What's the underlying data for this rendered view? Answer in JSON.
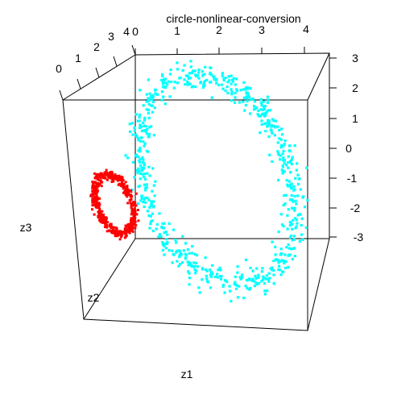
{
  "chart_data": {
    "type": "scatter",
    "title": "circle-nonlinear-conversion",
    "xlabel": "z1",
    "ylabel": "z2",
    "zlabel": "z3",
    "colors": {
      "outer": "#00FFFF",
      "inner": "#FF0000",
      "axes": "#000000",
      "background": "#FFFFFF"
    },
    "grid": false,
    "axes": {
      "z1": {
        "ticks": [
          "0",
          "1",
          "2",
          "3",
          "4"
        ]
      },
      "z2": {
        "ticks": [
          "0",
          "1",
          "2",
          "3",
          "4"
        ]
      },
      "z3": {
        "ticks": [
          "3",
          "2",
          "1",
          "0",
          "-1",
          "-2",
          "-3"
        ]
      }
    },
    "series": [
      {
        "color": "#00FFFF",
        "shape": "ring",
        "n_points": 700,
        "center": [
          2.3,
          2.3,
          -0.2
        ],
        "radius": 2.8,
        "thickness": 0.45
      },
      {
        "color": "#FF0000",
        "shape": "ring",
        "n_points": 500,
        "center": [
          0.2,
          0.2,
          -0.5
        ],
        "radius": 0.8,
        "thickness": 0.2
      }
    ]
  }
}
